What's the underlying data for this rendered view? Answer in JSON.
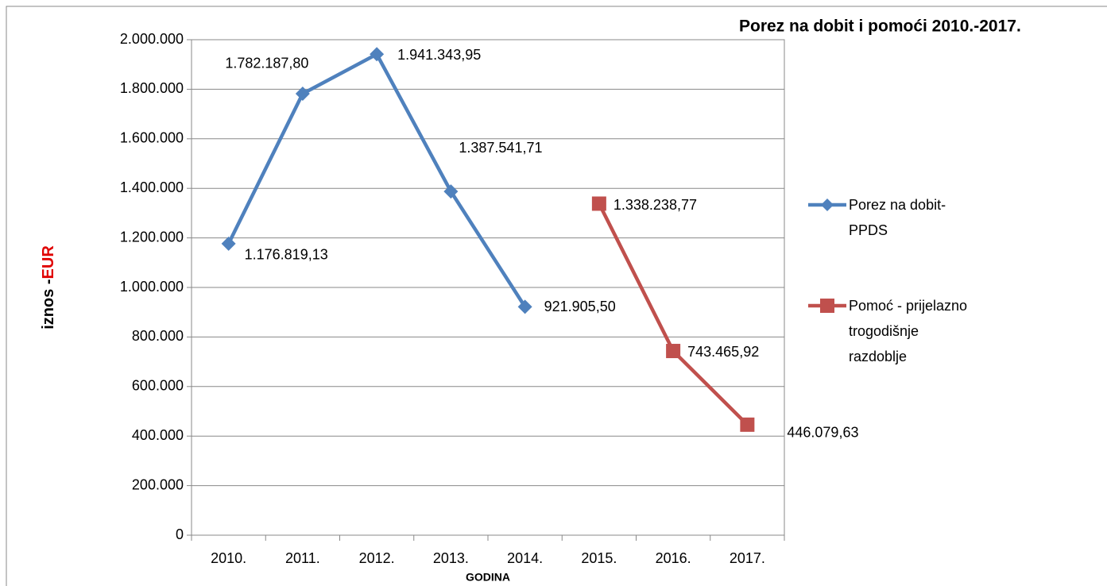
{
  "chart_data": {
    "type": "line",
    "title": "Porez na dobit i pomoći 2010.-2017.",
    "y_label": "iznos -",
    "y_label_unit": "EUR",
    "x_label": "GODINA",
    "categories": [
      "2010.",
      "2011.",
      "2012.",
      "2013.",
      "2014.",
      "2015.",
      "2016.",
      "2017."
    ],
    "series": [
      {
        "name": "Porez na dobit-PPDS",
        "color": "#4f81bd",
        "values": [
          1176819.13,
          1782187.8,
          1941343.95,
          1387541.71,
          921905.5,
          null,
          null,
          null
        ],
        "value_labels": [
          "1.176.819,13",
          "1.782.187,80",
          "1.941.343,95",
          "1.387.541,71",
          "921.905,50",
          null,
          null,
          null
        ]
      },
      {
        "name": "Pomoć - prijelazno trogodišnje razdoblje",
        "color": "#c0504d",
        "values": [
          null,
          null,
          null,
          null,
          null,
          1338238.77,
          743465.92,
          446079.63
        ],
        "value_labels": [
          null,
          null,
          null,
          null,
          null,
          "1.338.238,77",
          "743.465,92",
          "446.079,63"
        ]
      }
    ],
    "ylim": [
      0,
      2000000
    ],
    "yticks": [
      0,
      {
        "value": 200000,
        "label": "200.000"
      },
      {
        "value": 400000,
        "label": "400.000"
      },
      {
        "value": 600000,
        "label": "600.000"
      },
      {
        "value": 800000,
        "label": "800.000"
      },
      {
        "value": 1000000,
        "label": "1.000.000"
      },
      {
        "value": 1200000,
        "label": "1.200.000"
      },
      {
        "value": 1400000,
        "label": "1.400.000"
      },
      {
        "value": 1600000,
        "label": "1.600.000"
      },
      {
        "value": 1800000,
        "label": "1.800.000"
      },
      {
        "value": 2000000,
        "label": "2.000.000"
      }
    ],
    "grid": true,
    "legend": "right"
  }
}
